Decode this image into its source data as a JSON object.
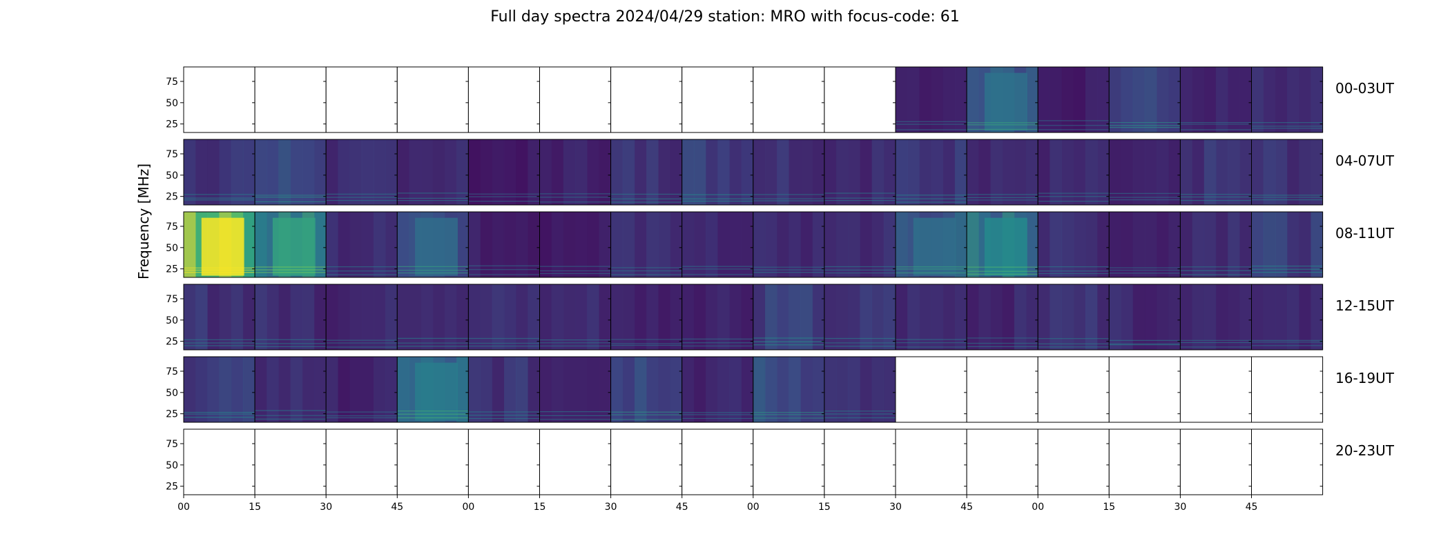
{
  "title": "Full day spectra 2024/04/29 station: MRO with focus-code: 61",
  "chart_data": {
    "type": "heatmap",
    "title": "Full day spectra 2024/04/29 station: MRO with focus-code: 61",
    "ylabel": "Frequency [MHz]",
    "ylim": [
      15,
      92
    ],
    "y_ticks": [
      25,
      50,
      75
    ],
    "x_ticks": [
      "00",
      "15",
      "30",
      "45",
      "00",
      "15",
      "30",
      "45",
      "00",
      "15",
      "30",
      "45",
      "00",
      "15",
      "30",
      "45"
    ],
    "colormap": [
      "#440154",
      "#3b528b",
      "#21918c",
      "#5ec962",
      "#fde725"
    ],
    "rows": [
      {
        "label": "00-03UT",
        "panels": [
          {
            "data": false
          },
          {
            "data": false
          },
          {
            "data": false
          },
          {
            "data": false
          },
          {
            "data": false
          },
          {
            "data": false
          },
          {
            "data": false
          },
          {
            "data": false
          },
          {
            "data": false
          },
          {
            "data": false
          },
          {
            "data": true,
            "level": 0.14
          },
          {
            "data": true,
            "level": 0.36
          },
          {
            "data": true,
            "level": 0.12
          },
          {
            "data": true,
            "level": 0.28
          },
          {
            "data": true,
            "level": 0.15
          },
          {
            "data": true,
            "level": 0.17
          }
        ]
      },
      {
        "label": "04-07UT",
        "panels": [
          {
            "data": true,
            "level": 0.22
          },
          {
            "data": true,
            "level": 0.28
          },
          {
            "data": true,
            "level": 0.17
          },
          {
            "data": true,
            "level": 0.18
          },
          {
            "data": true,
            "level": 0.11
          },
          {
            "data": true,
            "level": 0.14
          },
          {
            "data": true,
            "level": 0.2
          },
          {
            "data": true,
            "level": 0.25
          },
          {
            "data": true,
            "level": 0.2
          },
          {
            "data": true,
            "level": 0.18
          },
          {
            "data": true,
            "level": 0.22
          },
          {
            "data": true,
            "level": 0.18
          },
          {
            "data": true,
            "level": 0.16
          },
          {
            "data": true,
            "level": 0.13
          },
          {
            "data": true,
            "level": 0.2
          },
          {
            "data": true,
            "level": 0.2
          }
        ]
      },
      {
        "label": "08-11UT",
        "panels": [
          {
            "data": true,
            "level": 0.95
          },
          {
            "data": true,
            "level": 0.55
          },
          {
            "data": true,
            "level": 0.17
          },
          {
            "data": true,
            "level": 0.34
          },
          {
            "data": true,
            "level": 0.13
          },
          {
            "data": true,
            "level": 0.12
          },
          {
            "data": true,
            "level": 0.17
          },
          {
            "data": true,
            "level": 0.15
          },
          {
            "data": true,
            "level": 0.17
          },
          {
            "data": true,
            "level": 0.18
          },
          {
            "data": true,
            "level": 0.35
          },
          {
            "data": true,
            "level": 0.45
          },
          {
            "data": true,
            "level": 0.18
          },
          {
            "data": true,
            "level": 0.14
          },
          {
            "data": true,
            "level": 0.2
          },
          {
            "data": true,
            "level": 0.24
          }
        ]
      },
      {
        "label": "12-15UT",
        "panels": [
          {
            "data": true,
            "level": 0.2
          },
          {
            "data": true,
            "level": 0.18
          },
          {
            "data": true,
            "level": 0.16
          },
          {
            "data": true,
            "level": 0.2
          },
          {
            "data": true,
            "level": 0.18
          },
          {
            "data": true,
            "level": 0.17
          },
          {
            "data": true,
            "level": 0.14
          },
          {
            "data": true,
            "level": 0.15
          },
          {
            "data": true,
            "level": 0.26
          },
          {
            "data": true,
            "level": 0.2
          },
          {
            "data": true,
            "level": 0.17
          },
          {
            "data": true,
            "level": 0.16
          },
          {
            "data": true,
            "level": 0.2
          },
          {
            "data": true,
            "level": 0.17
          },
          {
            "data": true,
            "level": 0.17
          },
          {
            "data": true,
            "level": 0.15
          }
        ]
      },
      {
        "label": "16-19UT",
        "panels": [
          {
            "data": true,
            "level": 0.24
          },
          {
            "data": true,
            "level": 0.18
          },
          {
            "data": true,
            "level": 0.14
          },
          {
            "data": true,
            "level": 0.4
          },
          {
            "data": true,
            "level": 0.2
          },
          {
            "data": true,
            "level": 0.16
          },
          {
            "data": true,
            "level": 0.3
          },
          {
            "data": true,
            "level": 0.15
          },
          {
            "data": true,
            "level": 0.3
          },
          {
            "data": true,
            "level": 0.18
          },
          {
            "data": false
          },
          {
            "data": false
          },
          {
            "data": false
          },
          {
            "data": false
          },
          {
            "data": false
          },
          {
            "data": false
          }
        ]
      },
      {
        "label": "20-23UT",
        "panels": [
          {
            "data": false
          },
          {
            "data": false
          },
          {
            "data": false
          },
          {
            "data": false
          },
          {
            "data": false
          },
          {
            "data": false
          },
          {
            "data": false
          },
          {
            "data": false
          },
          {
            "data": false
          },
          {
            "data": false
          },
          {
            "data": false
          },
          {
            "data": false
          },
          {
            "data": false
          },
          {
            "data": false
          },
          {
            "data": false
          },
          {
            "data": false
          }
        ]
      }
    ]
  }
}
